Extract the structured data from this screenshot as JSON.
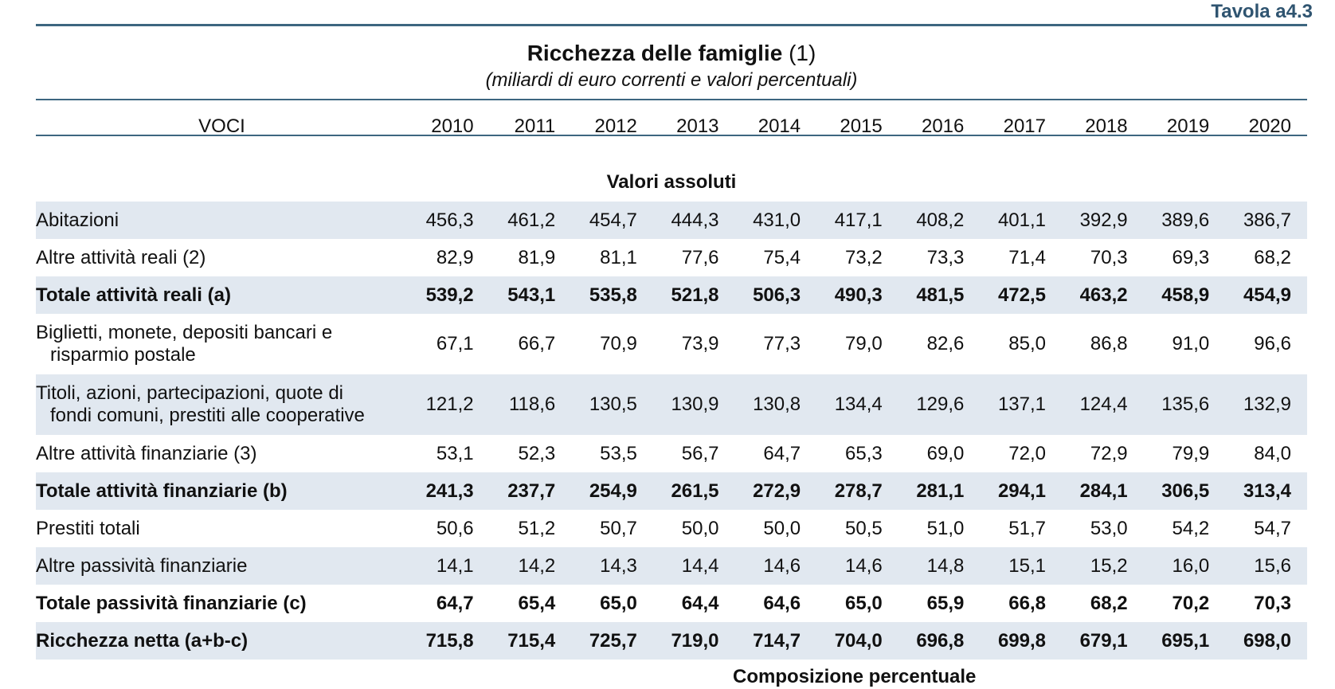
{
  "tavola": "Tavola a4.3",
  "title": "Ricchezza delle famiglie",
  "title_note": "(1)",
  "subtitle": "(miliardi di euro correnti e valori percentuali)",
  "header": {
    "voci": "VOCI",
    "years": [
      "2010",
      "2011",
      "2012",
      "2013",
      "2014",
      "2015",
      "2016",
      "2017",
      "2018",
      "2019",
      "2020"
    ]
  },
  "section_absolute": "Valori assoluti",
  "rows": [
    {
      "label": "Abitazioni",
      "values": [
        "456,3",
        "461,2",
        "454,7",
        "444,3",
        "431,0",
        "417,1",
        "408,2",
        "401,1",
        "392,9",
        "389,6",
        "386,7"
      ]
    },
    {
      "label": "Altre attività reali (2)",
      "values": [
        "82,9",
        "81,9",
        "81,1",
        "77,6",
        "75,4",
        "73,2",
        "73,3",
        "71,4",
        "70,3",
        "69,3",
        "68,2"
      ]
    },
    {
      "label": "Totale attività reali (a)",
      "values": [
        "539,2",
        "543,1",
        "535,8",
        "521,8",
        "506,3",
        "490,3",
        "481,5",
        "472,5",
        "463,2",
        "458,9",
        "454,9"
      ]
    },
    {
      "label": "Biglietti, monete, depositi bancari e",
      "label_cont": "risparmio postale",
      "values": [
        "67,1",
        "66,7",
        "70,9",
        "73,9",
        "77,3",
        "79,0",
        "82,6",
        "85,0",
        "86,8",
        "91,0",
        "96,6"
      ]
    },
    {
      "label": "Titoli, azioni, partecipazioni, quote di",
      "label_cont": "fondi comuni, prestiti alle cooperative",
      "values": [
        "121,2",
        "118,6",
        "130,5",
        "130,9",
        "130,8",
        "134,4",
        "129,6",
        "137,1",
        "124,4",
        "135,6",
        "132,9"
      ]
    },
    {
      "label": "Altre attività finanziarie (3)",
      "values": [
        "53,1",
        "52,3",
        "53,5",
        "56,7",
        "64,7",
        "65,3",
        "69,0",
        "72,0",
        "72,9",
        "79,9",
        "84,0"
      ]
    },
    {
      "label": "Totale attività finanziarie (b)",
      "values": [
        "241,3",
        "237,7",
        "254,9",
        "261,5",
        "272,9",
        "278,7",
        "281,1",
        "294,1",
        "284,1",
        "306,5",
        "313,4"
      ]
    },
    {
      "label": "Prestiti totali",
      "values": [
        "50,6",
        "51,2",
        "50,7",
        "50,0",
        "50,0",
        "50,5",
        "51,0",
        "51,7",
        "53,0",
        "54,2",
        "54,7"
      ]
    },
    {
      "label": "Altre passività finanziarie",
      "values": [
        "14,1",
        "14,2",
        "14,3",
        "14,4",
        "14,6",
        "14,6",
        "14,8",
        "15,1",
        "15,2",
        "16,0",
        "15,6"
      ]
    },
    {
      "label": "Totale passività finanziarie (c)",
      "values": [
        "64,7",
        "65,4",
        "65,0",
        "64,4",
        "64,6",
        "65,0",
        "65,9",
        "66,8",
        "68,2",
        "70,2",
        "70,3"
      ]
    },
    {
      "label": "Ricchezza netta (a+b-c)",
      "values": [
        "715,8",
        "715,4",
        "725,7",
        "719,0",
        "714,7",
        "704,0",
        "696,8",
        "699,8",
        "679,1",
        "695,1",
        "698,0"
      ]
    }
  ],
  "partial_next_section": "Composizione percentuale"
}
